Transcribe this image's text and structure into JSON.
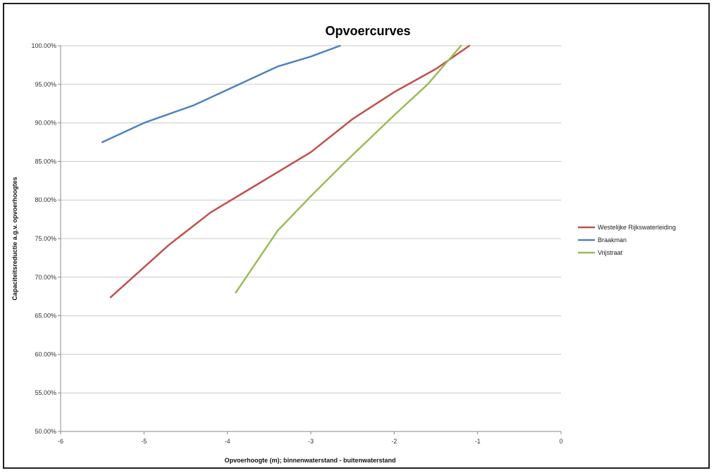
{
  "chart_data": {
    "type": "line",
    "title": "Opvoercurves",
    "xlabel": "Opvoerhoogte (m); binnenwaterstand - buitenwaterstand",
    "ylabel": "Capaciteitsreductie a.g.v. opvoerhoogtes",
    "xlim": [
      -6,
      0
    ],
    "ylim": [
      0.5,
      1.0
    ],
    "x_ticks": [
      "-6",
      "-5",
      "-4",
      "-3",
      "-2",
      "-1",
      "0"
    ],
    "y_ticks": [
      "50.00%",
      "55.00%",
      "60.00%",
      "65.00%",
      "70.00%",
      "75.00%",
      "80.00%",
      "85.00%",
      "90.00%",
      "95.00%",
      "100.00%"
    ],
    "grid": "horizontal",
    "legend_position": "right",
    "series": [
      {
        "name": "Westelijke Rijkswaterleiding",
        "color": "#c0504d",
        "x": [
          -5.4,
          -4.7,
          -4.2,
          -3.6,
          -3.0,
          -2.5,
          -2.0,
          -1.5,
          -1.1
        ],
        "y": [
          0.674,
          0.742,
          0.784,
          0.823,
          0.862,
          0.905,
          0.94,
          0.97,
          1.0
        ]
      },
      {
        "name": "Braakman",
        "color": "#4f81bd",
        "x": [
          -5.5,
          -5.0,
          -4.4,
          -3.9,
          -3.4,
          -3.0,
          -2.65
        ],
        "y": [
          0.875,
          0.9,
          0.923,
          0.948,
          0.973,
          0.986,
          1.0
        ]
      },
      {
        "name": "Vrijstraat",
        "color": "#9bbb59",
        "x": [
          -3.9,
          -3.4,
          -3.0,
          -2.6,
          -2.0,
          -1.6,
          -1.2
        ],
        "y": [
          0.68,
          0.76,
          0.805,
          0.848,
          0.91,
          0.95,
          1.0
        ]
      }
    ]
  }
}
